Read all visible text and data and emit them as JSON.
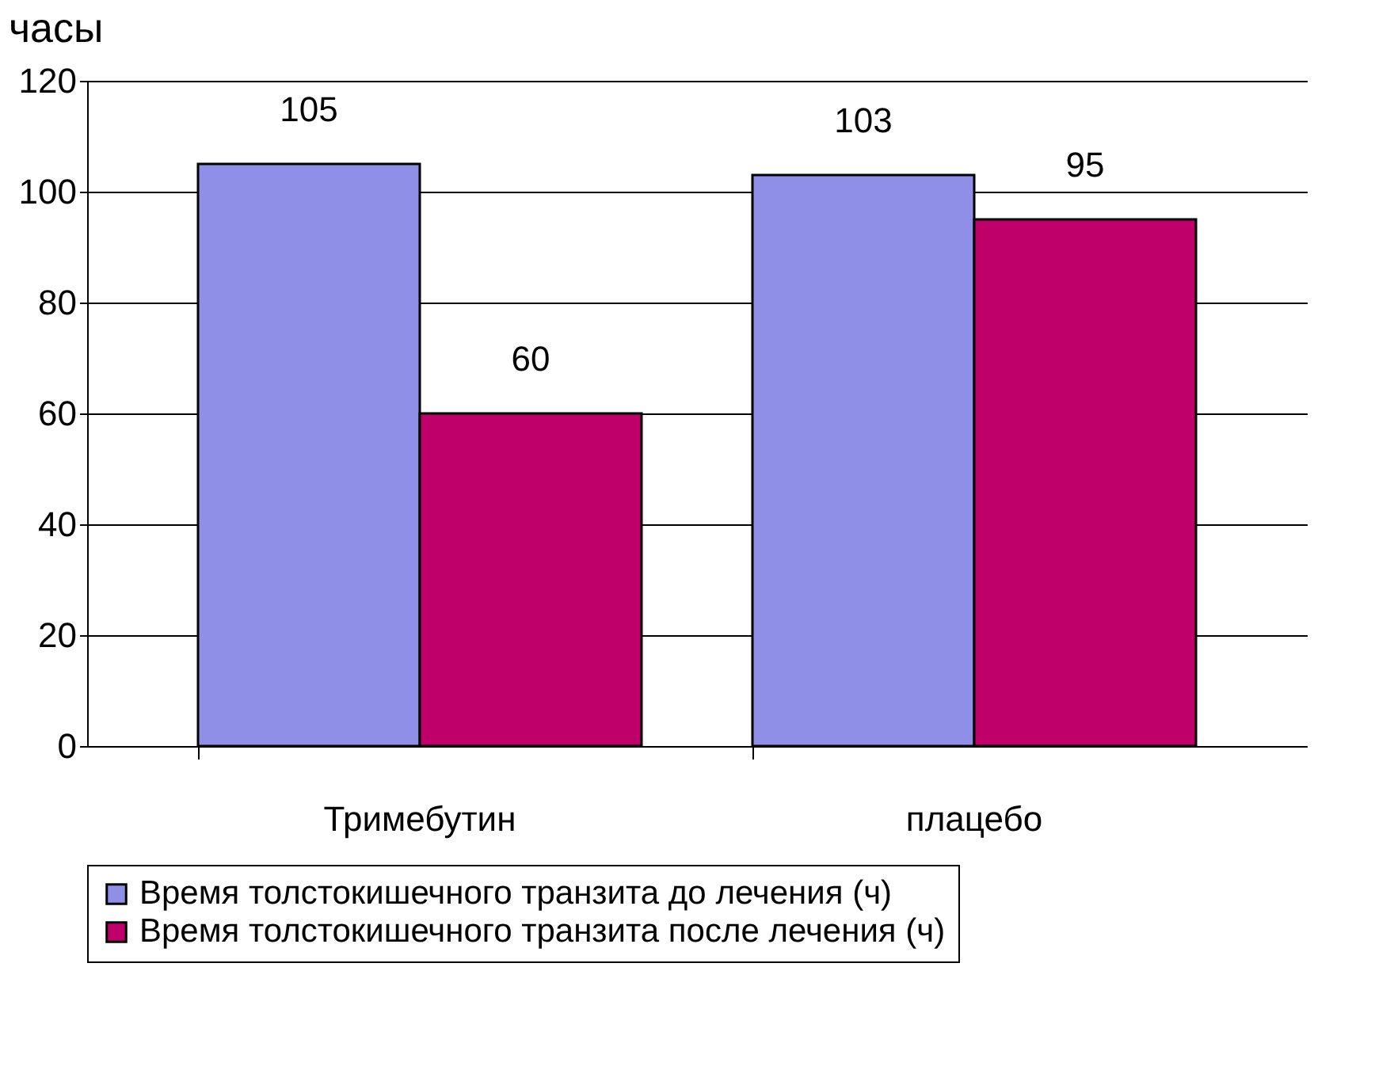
{
  "chart_data": {
    "type": "bar",
    "ylabel": "часы",
    "categories": [
      "Тримебутин",
      "плацебо"
    ],
    "series": [
      {
        "name": "Время толстокишечного транзита до лечения (ч)",
        "color": "#8f8fe8",
        "values": [
          105,
          103
        ]
      },
      {
        "name": "Время толстокишечного транзита после лечения (ч)",
        "color": "#c0006a",
        "values": [
          60,
          95
        ]
      }
    ],
    "ylim": [
      0,
      120
    ],
    "yticks": [
      0,
      20,
      40,
      60,
      80,
      100,
      120
    ],
    "grid": "y",
    "legend": "bottom",
    "data_labels": true
  }
}
